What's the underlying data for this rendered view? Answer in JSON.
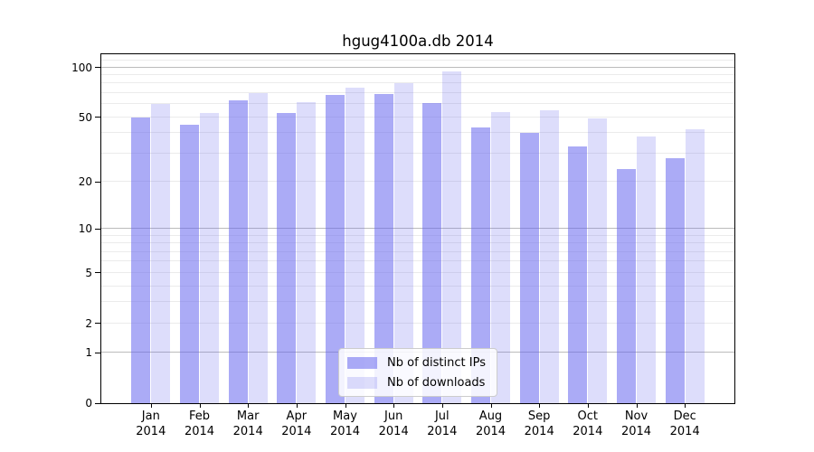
{
  "chart_data": {
    "type": "bar",
    "title": "hgug4100a.db 2014",
    "categories": [
      "Jan",
      "Feb",
      "Mar",
      "Apr",
      "May",
      "Jun",
      "Jul",
      "Aug",
      "Sep",
      "Oct",
      "Nov",
      "Dec"
    ],
    "x_year_label": "2014",
    "series": [
      {
        "name": "Nb of distinct IPs",
        "color": "#6666EE",
        "alpha": 0.55,
        "values": [
          50,
          45,
          63,
          53,
          68,
          69,
          61,
          43,
          40,
          33,
          24,
          28
        ]
      },
      {
        "name": "Nb of downloads",
        "color": "#6666EE",
        "alpha": 0.22,
        "values": [
          60,
          53,
          70,
          62,
          75,
          80,
          95,
          54,
          55,
          49,
          38,
          42
        ]
      }
    ],
    "yscale": "log1p",
    "ylim": [
      0,
      120
    ],
    "yticks": [
      100,
      50,
      20,
      10,
      5,
      2,
      1,
      0
    ],
    "grid": true,
    "grid_minor_values": [
      2,
      3,
      4,
      5,
      6,
      7,
      8,
      9,
      20,
      30,
      40,
      50,
      60,
      70,
      80,
      90,
      110
    ],
    "grid_major_values": [
      1,
      10,
      100
    ],
    "legend_position": "lower center",
    "colors": {
      "grid_minor": "#EBEBEB",
      "grid_major": "#BBBBBB",
      "spine": "#000000",
      "legend_border": "#CCCCCC",
      "legend_background": "#FFFFFF"
    }
  }
}
